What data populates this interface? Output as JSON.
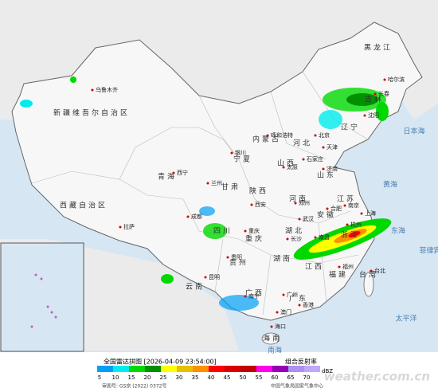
{
  "legend": {
    "title": "全国雷达拼图 [2026-04-09 23:54:00]",
    "product": "组合反射率",
    "unit": "dBZ",
    "items": [
      {
        "value": 5,
        "color": "#01a0f6"
      },
      {
        "value": 10,
        "color": "#00ecec"
      },
      {
        "value": 15,
        "color": "#00d800"
      },
      {
        "value": 20,
        "color": "#019000"
      },
      {
        "value": 25,
        "color": "#ffff00"
      },
      {
        "value": 30,
        "color": "#e7c000"
      },
      {
        "value": 35,
        "color": "#ff9000"
      },
      {
        "value": 40,
        "color": "#ff0000"
      },
      {
        "value": 45,
        "color": "#d60000"
      },
      {
        "value": 50,
        "color": "#c00000"
      },
      {
        "value": 55,
        "color": "#ff00f0"
      },
      {
        "value": 60,
        "color": "#9600b4"
      },
      {
        "value": 65,
        "color": "#ad90f0"
      },
      {
        "value": 70,
        "color": "#c0a8f8"
      }
    ]
  },
  "footer": {
    "approval": "审图号: GS京 (2022) 0372号",
    "source": "中国气象局国家气象中心",
    "watermark": "weather.com.cn"
  },
  "provinces": [
    "新疆维吾尔自治区",
    "西藏自治区",
    "青海",
    "甘肃",
    "内蒙古",
    "黑龙江",
    "吉林",
    "辽宁",
    "河北",
    "山西",
    "陕西",
    "宁夏",
    "山东",
    "河南",
    "江苏",
    "安徽",
    "湖北",
    "四川",
    "重庆",
    "贵州",
    "云南",
    "湖南",
    "江西",
    "浙江",
    "福建",
    "广西",
    "广东",
    "海南",
    "台湾"
  ],
  "cities": [
    "乌鲁木齐",
    "拉萨",
    "西宁",
    "兰州",
    "银川",
    "呼和浩特",
    "哈尔滨",
    "长春",
    "沈阳",
    "北京",
    "天津",
    "石家庄",
    "太原",
    "济南",
    "郑州",
    "西安",
    "成都",
    "重庆",
    "贵阳",
    "昆明",
    "南宁",
    "广州",
    "海口",
    "长沙",
    "武汉",
    "南昌",
    "合肥",
    "南京",
    "上海",
    "杭州",
    "福州",
    "台北",
    "香港",
    "澳门"
  ],
  "seas": [
    "日本海",
    "黄海",
    "东海",
    "太平洋",
    "南海",
    "菲律宾"
  ]
}
